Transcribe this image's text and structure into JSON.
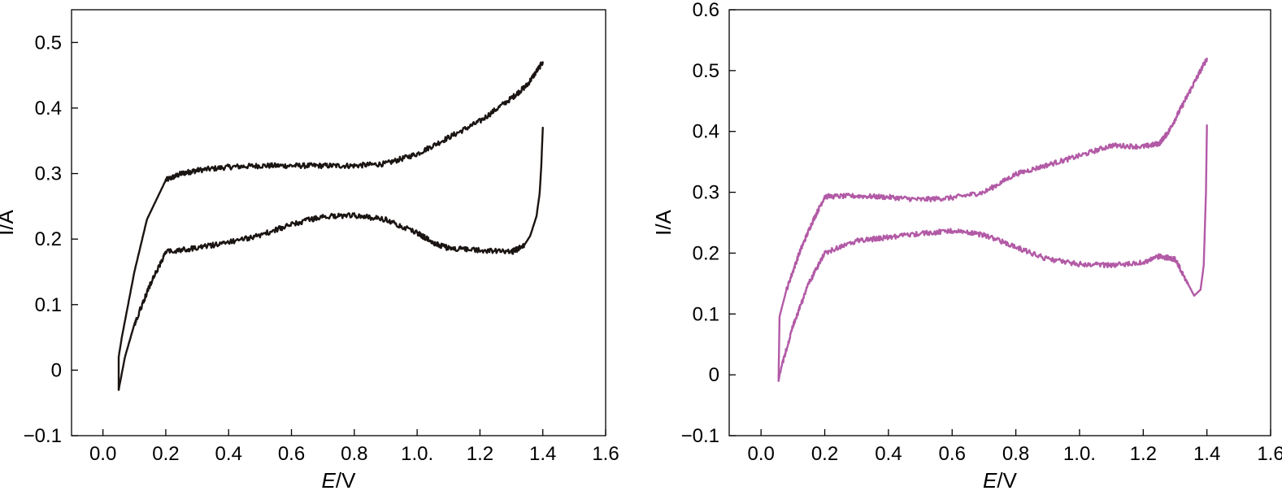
{
  "chart_data": [
    {
      "type": "line",
      "xlabel": {
        "italic": "E",
        "rest": "/V"
      },
      "ylabel": "I/A",
      "xlim": [
        -0.1,
        1.6
      ],
      "ylim": [
        -0.1,
        0.55
      ],
      "x_ticks": [
        0.0,
        0.2,
        0.4,
        0.6,
        0.8,
        1.0,
        1.2,
        1.4,
        1.6
      ],
      "x_tick_labels": [
        "0.0",
        "0.2",
        "0.4",
        "0.6",
        "0.8",
        "1.0.",
        "1.2",
        "1.4",
        "1.6"
      ],
      "y_ticks": [
        -0.1,
        0,
        0.1,
        0.2,
        0.3,
        0.4,
        0.5
      ],
      "y_tick_labels": [
        "−0.1",
        "0",
        "0.1",
        "0.2",
        "0.3",
        "0.4",
        "0.5"
      ],
      "grid": false,
      "color": "#1a1412",
      "noise": 0.008,
      "series": [
        {
          "points": [
            [
              0.05,
              -0.03
            ],
            [
              0.05,
              0.02
            ],
            [
              0.06,
              0.05
            ],
            [
              0.08,
              0.1
            ],
            [
              0.1,
              0.15
            ],
            [
              0.12,
              0.19
            ],
            [
              0.14,
              0.23
            ],
            [
              0.17,
              0.26
            ],
            [
              0.2,
              0.29
            ],
            [
              0.25,
              0.3
            ],
            [
              0.3,
              0.305
            ],
            [
              0.4,
              0.31
            ],
            [
              0.5,
              0.312
            ],
            [
              0.6,
              0.312
            ],
            [
              0.7,
              0.312
            ],
            [
              0.8,
              0.312
            ],
            [
              0.9,
              0.315
            ],
            [
              1.0,
              0.33
            ],
            [
              1.1,
              0.355
            ],
            [
              1.2,
              0.38
            ],
            [
              1.3,
              0.415
            ],
            [
              1.35,
              0.435
            ],
            [
              1.4,
              0.47
            ]
          ]
        },
        {
          "points": [
            [
              1.4,
              0.37
            ],
            [
              1.395,
              0.31
            ],
            [
              1.39,
              0.27
            ],
            [
              1.38,
              0.235
            ],
            [
              1.36,
              0.205
            ],
            [
              1.34,
              0.19
            ],
            [
              1.3,
              0.18
            ],
            [
              1.2,
              0.183
            ],
            [
              1.1,
              0.186
            ],
            [
              1.05,
              0.195
            ],
            [
              1.0,
              0.21
            ],
            [
              0.9,
              0.23
            ],
            [
              0.8,
              0.236
            ],
            [
              0.7,
              0.235
            ],
            [
              0.6,
              0.222
            ],
            [
              0.5,
              0.206
            ],
            [
              0.4,
              0.195
            ],
            [
              0.3,
              0.187
            ],
            [
              0.2,
              0.18
            ],
            [
              0.15,
              0.13
            ],
            [
              0.1,
              0.07
            ],
            [
              0.07,
              0.02
            ],
            [
              0.05,
              -0.03
            ]
          ]
        }
      ]
    },
    {
      "type": "line",
      "xlabel": {
        "italic": "E",
        "rest": "/V"
      },
      "ylabel": "I/A",
      "xlim": [
        -0.1,
        1.6
      ],
      "ylim": [
        -0.1,
        0.6
      ],
      "x_ticks": [
        0.0,
        0.2,
        0.4,
        0.6,
        0.8,
        1.0,
        1.2,
        1.4,
        1.6
      ],
      "x_tick_labels": [
        "0.0",
        "0.2",
        "0.4",
        "0.6",
        "0.8",
        "1.0.",
        "1.2",
        "1.4",
        "1.6"
      ],
      "y_ticks": [
        -0.1,
        0,
        0.1,
        0.2,
        0.3,
        0.4,
        0.5,
        0.6
      ],
      "y_tick_labels": [
        "−0.1",
        "0",
        "0.1",
        "0.2",
        "0.3",
        "0.4",
        "0.5",
        "0.6"
      ],
      "grid": false,
      "color": "#b25aa6",
      "noise": 0.008,
      "series": [
        {
          "points": [
            [
              0.055,
              -0.01
            ],
            [
              0.058,
              0.095
            ],
            [
              0.06,
              0.1
            ],
            [
              0.08,
              0.14
            ],
            [
              0.12,
              0.2
            ],
            [
              0.16,
              0.25
            ],
            [
              0.2,
              0.293
            ],
            [
              0.3,
              0.294
            ],
            [
              0.4,
              0.292
            ],
            [
              0.5,
              0.288
            ],
            [
              0.6,
              0.291
            ],
            [
              0.7,
              0.3
            ],
            [
              0.8,
              0.33
            ],
            [
              0.9,
              0.345
            ],
            [
              1.0,
              0.36
            ],
            [
              1.1,
              0.377
            ],
            [
              1.2,
              0.375
            ],
            [
              1.25,
              0.38
            ],
            [
              1.28,
              0.4
            ],
            [
              1.32,
              0.44
            ],
            [
              1.36,
              0.48
            ],
            [
              1.4,
              0.52
            ]
          ]
        },
        {
          "points": [
            [
              1.4,
              0.41
            ],
            [
              1.397,
              0.3
            ],
            [
              1.39,
              0.18
            ],
            [
              1.38,
              0.14
            ],
            [
              1.36,
              0.13
            ],
            [
              1.34,
              0.15
            ],
            [
              1.3,
              0.19
            ],
            [
              1.25,
              0.195
            ],
            [
              1.2,
              0.185
            ],
            [
              1.1,
              0.18
            ],
            [
              1.0,
              0.182
            ],
            [
              0.9,
              0.19
            ],
            [
              0.8,
              0.21
            ],
            [
              0.7,
              0.23
            ],
            [
              0.6,
              0.237
            ],
            [
              0.5,
              0.232
            ],
            [
              0.4,
              0.226
            ],
            [
              0.3,
              0.22
            ],
            [
              0.2,
              0.2
            ],
            [
              0.15,
              0.15
            ],
            [
              0.1,
              0.08
            ],
            [
              0.06,
              0.005
            ],
            [
              0.055,
              -0.01
            ]
          ]
        }
      ]
    }
  ]
}
